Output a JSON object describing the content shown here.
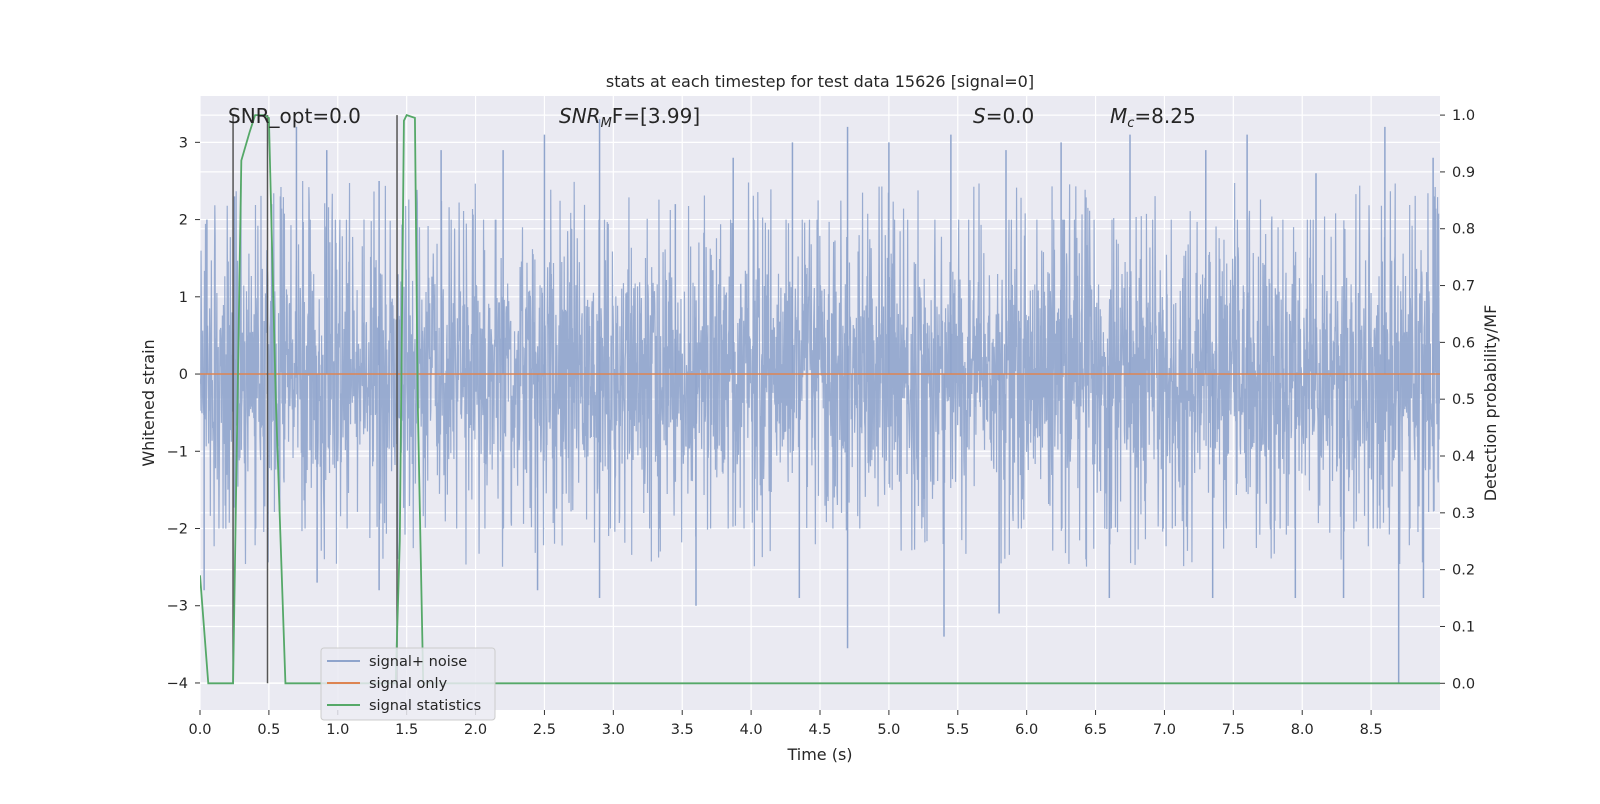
{
  "chart_data": {
    "type": "line",
    "title": "stats at each timestep for test data 15626 [signal=0]",
    "xlabel": "Time (s)",
    "ylabel": "Whitened strain",
    "y2label": "Detection probability/MF",
    "xlim": [
      0.0,
      9.0
    ],
    "ylim": [
      -4.35,
      3.6
    ],
    "y2lim": [
      -0.047,
      1.0336
    ],
    "xticks": [
      "0.0",
      "0.5",
      "1.0",
      "1.5",
      "2.0",
      "2.5",
      "3.0",
      "3.5",
      "4.0",
      "4.5",
      "5.0",
      "5.5",
      "6.0",
      "6.5",
      "7.0",
      "7.5",
      "8.0",
      "8.5"
    ],
    "yticks": [
      "3",
      "2",
      "1",
      "0",
      "−1",
      "−2",
      "−3",
      "−4"
    ],
    "y2ticks": [
      "1.0",
      "0.9",
      "0.8",
      "0.7",
      "0.6",
      "0.5",
      "0.4",
      "0.3",
      "0.2",
      "0.1",
      "0.0"
    ],
    "grid": true,
    "legend_position": "lower-left",
    "annotations": {
      "snr_opt": "SNR_opt=0.0",
      "snr_mf_sym": "SNR",
      "snr_mf_sub": "M",
      "snr_mf_rest": "F=[3.99]",
      "s_sym": "S",
      "s_rest": "=0.0",
      "mc_sym": "M",
      "mc_sub": "c",
      "mc_rest": "=8.25"
    },
    "series": [
      {
        "name": "signal+ noise",
        "color": "#8fa4cc",
        "description_envelope": {
          "upper_typical": 1.7,
          "lower_typical": -1.7,
          "spikes": [
            [
              0.05,
              2.0
            ],
            [
              0.25,
              2.3
            ],
            [
              0.52,
              2.2
            ],
            [
              0.7,
              3.2
            ],
            [
              0.92,
              2.9
            ],
            [
              1.3,
              2.5
            ],
            [
              1.75,
              2.9
            ],
            [
              2.2,
              2.9
            ],
            [
              2.5,
              3.1
            ],
            [
              2.9,
              3.3
            ],
            [
              3.45,
              2.2
            ],
            [
              3.87,
              2.8
            ],
            [
              4.3,
              3.0
            ],
            [
              4.7,
              3.2
            ],
            [
              5.0,
              3.0
            ],
            [
              5.45,
              3.1
            ],
            [
              5.85,
              2.9
            ],
            [
              6.25,
              3.0
            ],
            [
              6.75,
              3.1
            ],
            [
              7.3,
              2.9
            ],
            [
              7.6,
              3.1
            ],
            [
              8.1,
              2.6
            ],
            [
              8.6,
              3.2
            ],
            [
              8.95,
              2.8
            ],
            [
              0.03,
              -2.8
            ],
            [
              0.85,
              -2.7
            ],
            [
              1.3,
              -2.8
            ],
            [
              2.45,
              -2.8
            ],
            [
              2.9,
              -2.9
            ],
            [
              3.6,
              -3.0
            ],
            [
              4.35,
              -2.9
            ],
            [
              4.7,
              -3.55
            ],
            [
              5.4,
              -3.4
            ],
            [
              5.8,
              -3.1
            ],
            [
              6.6,
              -2.9
            ],
            [
              7.35,
              -2.9
            ],
            [
              7.95,
              -2.9
            ],
            [
              8.3,
              -2.9
            ],
            [
              8.7,
              -4.0
            ],
            [
              8.88,
              -2.9
            ]
          ]
        }
      },
      {
        "name": "signal only",
        "color": "#dd8452",
        "x": [
          0.0,
          9.0
        ],
        "y": [
          0.0,
          0.0
        ]
      },
      {
        "name": "signal statistics",
        "color": "#55a868",
        "axis": "right",
        "x": [
          0.0,
          0.06,
          0.14,
          0.24,
          0.3,
          0.36,
          0.4,
          0.47,
          0.5,
          0.55,
          0.62,
          0.7,
          0.8,
          1.0,
          1.42,
          1.45,
          1.48,
          1.5,
          1.56,
          1.58,
          1.62,
          2.0,
          4.0,
          6.0,
          8.0,
          9.0
        ],
        "y": [
          0.19,
          0.0,
          0.0,
          0.0,
          0.92,
          0.97,
          1.0,
          1.0,
          0.995,
          0.5,
          0.0,
          0.0,
          0.0,
          0.0,
          0.0,
          0.25,
          0.99,
          1.0,
          0.995,
          0.5,
          0.0,
          0.0,
          0.0,
          0.0,
          0.0,
          0.0
        ]
      }
    ],
    "vertical_lines": [
      0.24,
      0.49,
      1.43
    ],
    "vertical_line_color": "#555555"
  }
}
